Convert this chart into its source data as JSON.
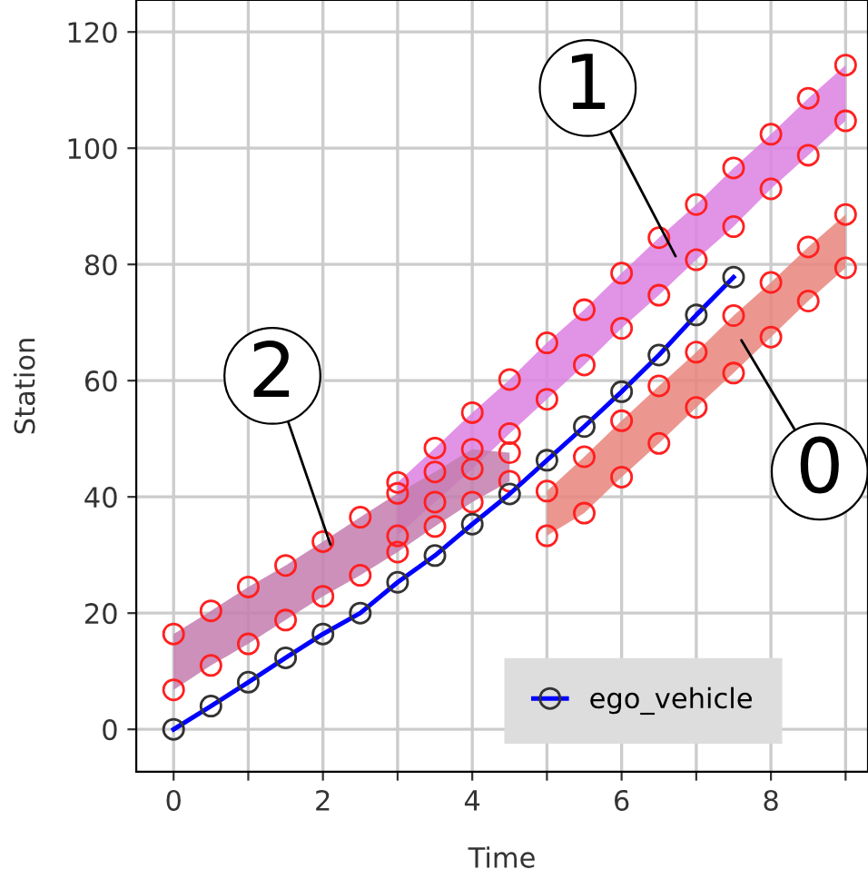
{
  "chart_data": {
    "type": "line",
    "xlabel": "Time",
    "ylabel": "Station",
    "xlim": [
      -0.5,
      9.3
    ],
    "ylim": [
      -7.3,
      125.5
    ],
    "xticks": [
      0,
      {
        "value": 1,
        "label": null
      },
      2,
      {
        "value": 3,
        "label": null
      },
      4,
      {
        "value": 5,
        "label": null
      },
      6,
      {
        "value": 7,
        "label": null
      },
      8,
      {
        "value": 9,
        "label": null
      }
    ],
    "yticks": [
      0,
      20,
      40,
      60,
      80,
      100,
      120
    ],
    "grid": true,
    "legend": "bottom right",
    "series": [
      {
        "type": "scatter",
        "color": "#ff2020",
        "x": [
          5,
          5.5,
          6,
          6.5,
          7,
          7.5,
          8,
          8.5,
          9
        ],
        "values": [
          41.0,
          46.9,
          53.1,
          59.1,
          64.9,
          71.2,
          76.9,
          83.0,
          88.6
        ],
        "lower": [
          33.3,
          37.2,
          43.4,
          49.2,
          55.4,
          61.3,
          67.5,
          73.7,
          79.4
        ],
        "upper": [
          41.0,
          46.9,
          53.1,
          59.1,
          64.9,
          71.2,
          76.9,
          83.0,
          88.6
        ],
        "marker": "circle"
      },
      {
        "type": "scatter",
        "color": "#ff2020",
        "x": [
          3,
          3.5,
          4,
          4.5,
          5,
          5.5,
          6,
          6.5,
          7,
          7.5,
          8,
          8.5,
          9
        ],
        "values": [
          42.5,
          48.4,
          54.5,
          60.2,
          66.5,
          72.2,
          78.5,
          84.6,
          90.3,
          96.6,
          102.4,
          108.6,
          114.3
        ],
        "lower": [
          33.3,
          39.1,
          44.8,
          50.9,
          56.8,
          62.7,
          69.0,
          74.7,
          80.8,
          86.5,
          93.0,
          98.8,
          104.7
        ],
        "upper": [
          42.5,
          48.4,
          54.5,
          60.2,
          66.5,
          72.2,
          78.5,
          84.6,
          90.3,
          96.6,
          102.4,
          108.6,
          114.3
        ],
        "marker": "circle"
      },
      {
        "type": "scatter",
        "color": "#ff2020",
        "x": [
          0,
          0.5,
          1,
          1.5,
          2,
          2.5,
          3,
          3.5,
          4,
          4.5
        ],
        "values": [
          16.4,
          20.4,
          24.5,
          28.2,
          32.3,
          36.5,
          40.6,
          44.3,
          48.2,
          47.6
        ],
        "lower": [
          6.8,
          11.0,
          14.7,
          18.8,
          22.9,
          26.5,
          30.5,
          34.9,
          39.1,
          42.7
        ],
        "upper": [
          16.4,
          20.4,
          24.5,
          28.2,
          32.3,
          36.5,
          40.6,
          44.3,
          48.2,
          47.6
        ],
        "marker": "circle"
      },
      {
        "type": "scatter",
        "color": "#ff2020",
        "marker": "circle",
        "x": [
          5,
          5.5,
          6,
          6.5,
          7,
          7.5,
          8,
          8.5,
          9
        ],
        "values": [
          33.3,
          37.2,
          43.4,
          49.2,
          55.4,
          61.3,
          67.5,
          73.7,
          79.4
        ]
      },
      {
        "type": "scatter",
        "color": "#ff2020",
        "marker": "circle",
        "x": [
          3,
          3.5,
          4,
          4.5,
          5,
          5.5,
          6,
          6.5,
          7,
          7.5,
          8,
          8.5,
          9
        ],
        "values": [
          33.3,
          39.1,
          44.8,
          50.9,
          56.8,
          62.7,
          69.0,
          74.7,
          80.8,
          86.5,
          93.0,
          98.8,
          104.7
        ]
      },
      {
        "type": "scatter",
        "color": "#ff2020",
        "marker": "circle",
        "x": [
          0,
          0.5,
          1,
          1.5,
          2,
          2.5,
          3,
          3.5,
          4,
          4.5
        ],
        "values": [
          6.8,
          11.0,
          14.7,
          18.8,
          22.9,
          26.5,
          30.5,
          34.9,
          39.1,
          42.7
        ]
      },
      {
        "name": "ego_vehicle",
        "color": "#0000ff",
        "marker": "circle",
        "line_style": "solid",
        "x": [
          0,
          0.5,
          1,
          1.5,
          2,
          2.5,
          3,
          3.5,
          4,
          4.5,
          5,
          5.5,
          6,
          6.5,
          7,
          7.5
        ],
        "values": [
          0,
          4,
          8.1,
          12.3,
          16.4,
          20,
          25.3,
          29.9,
          35.3,
          40.5,
          46.3,
          52.1,
          58.1,
          64.4,
          71.3,
          77.8
        ]
      }
    ],
    "annotations": [
      "1",
      {
        "text": "2",
        "x": 2.1,
        "y": 31.8
      },
      "0"
    ]
  }
}
